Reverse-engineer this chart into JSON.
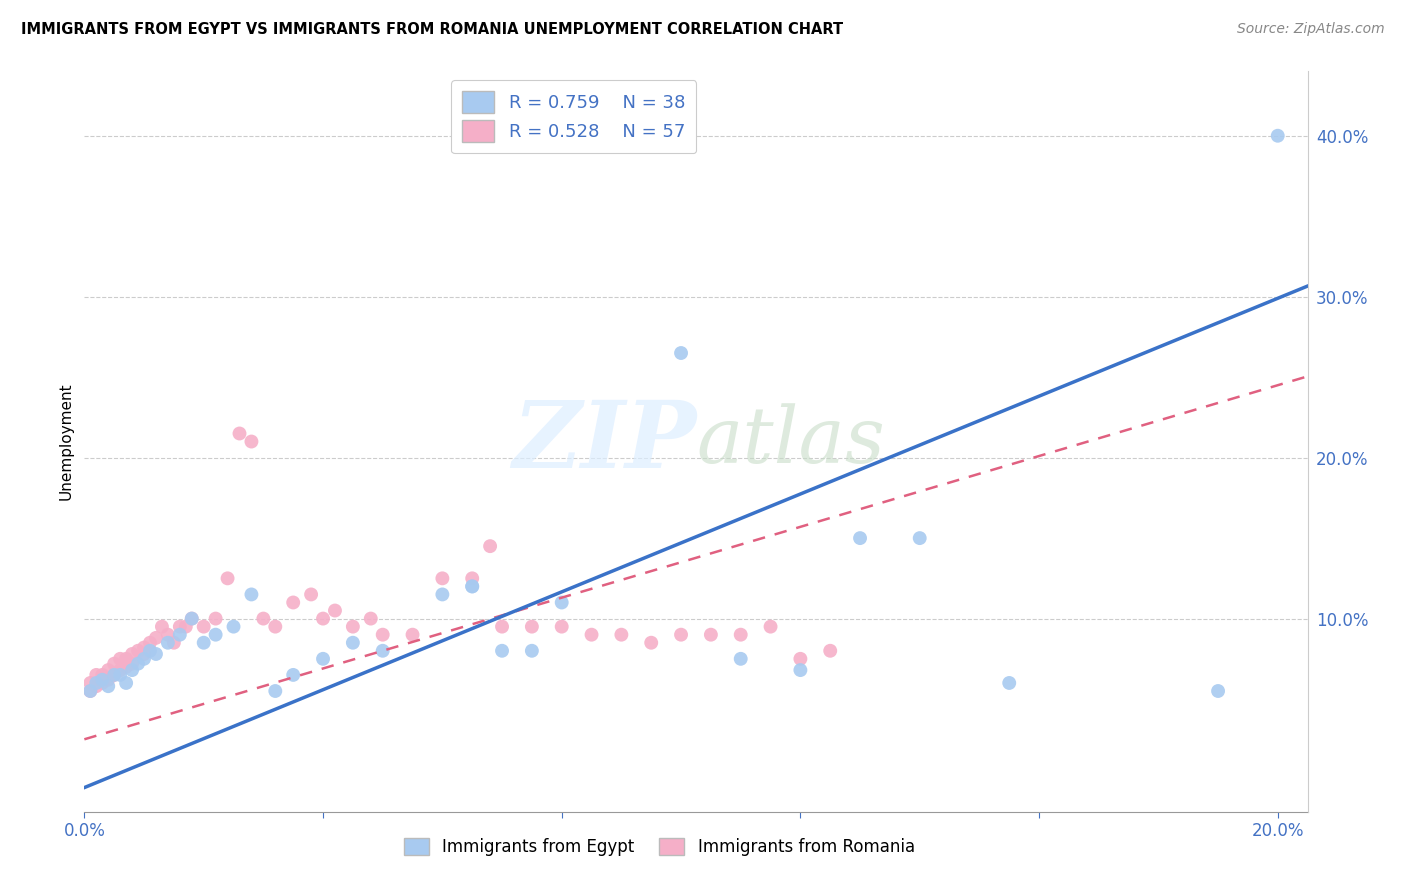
{
  "title": "IMMIGRANTS FROM EGYPT VS IMMIGRANTS FROM ROMANIA UNEMPLOYMENT CORRELATION CHART",
  "source": "Source: ZipAtlas.com",
  "ylabel_label": "Unemployment",
  "xlim": [
    0.0,
    0.205
  ],
  "ylim": [
    -0.02,
    0.44
  ],
  "egypt_R": 0.759,
  "egypt_N": 38,
  "romania_R": 0.528,
  "romania_N": 57,
  "egypt_color": "#a8caf0",
  "romania_color": "#f5afc8",
  "egypt_line_color": "#3a72c8",
  "romania_line_color": "#e06080",
  "background_color": "#ffffff",
  "egypt_x": [
    0.001,
    0.002,
    0.003,
    0.004,
    0.005,
    0.006,
    0.007,
    0.008,
    0.009,
    0.01,
    0.011,
    0.012,
    0.014,
    0.016,
    0.018,
    0.02,
    0.022,
    0.025,
    0.028,
    0.032,
    0.035,
    0.04,
    0.045,
    0.05,
    0.06,
    0.065,
    0.065,
    0.07,
    0.075,
    0.08,
    0.1,
    0.11,
    0.12,
    0.13,
    0.14,
    0.155,
    0.19,
    0.2
  ],
  "egypt_y": [
    0.055,
    0.06,
    0.062,
    0.058,
    0.065,
    0.065,
    0.06,
    0.068,
    0.072,
    0.075,
    0.08,
    0.078,
    0.085,
    0.09,
    0.1,
    0.085,
    0.09,
    0.095,
    0.115,
    0.055,
    0.065,
    0.075,
    0.085,
    0.08,
    0.115,
    0.12,
    0.12,
    0.08,
    0.08,
    0.11,
    0.265,
    0.075,
    0.068,
    0.15,
    0.15,
    0.06,
    0.055,
    0.4
  ],
  "romania_x": [
    0.001,
    0.001,
    0.002,
    0.002,
    0.003,
    0.003,
    0.004,
    0.004,
    0.005,
    0.005,
    0.006,
    0.006,
    0.007,
    0.007,
    0.008,
    0.008,
    0.009,
    0.01,
    0.01,
    0.011,
    0.012,
    0.013,
    0.014,
    0.015,
    0.016,
    0.017,
    0.018,
    0.02,
    0.022,
    0.024,
    0.026,
    0.028,
    0.03,
    0.032,
    0.035,
    0.038,
    0.04,
    0.042,
    0.045,
    0.048,
    0.05,
    0.055,
    0.06,
    0.065,
    0.068,
    0.07,
    0.075,
    0.08,
    0.085,
    0.09,
    0.095,
    0.1,
    0.105,
    0.11,
    0.115,
    0.12,
    0.125
  ],
  "romania_y": [
    0.055,
    0.06,
    0.058,
    0.065,
    0.06,
    0.065,
    0.062,
    0.068,
    0.065,
    0.072,
    0.068,
    0.075,
    0.07,
    0.075,
    0.072,
    0.078,
    0.08,
    0.078,
    0.082,
    0.085,
    0.088,
    0.095,
    0.09,
    0.085,
    0.095,
    0.095,
    0.1,
    0.095,
    0.1,
    0.125,
    0.215,
    0.21,
    0.1,
    0.095,
    0.11,
    0.115,
    0.1,
    0.105,
    0.095,
    0.1,
    0.09,
    0.09,
    0.125,
    0.125,
    0.145,
    0.095,
    0.095,
    0.095,
    0.09,
    0.09,
    0.085,
    0.09,
    0.09,
    0.09,
    0.095,
    0.075,
    0.08
  ]
}
